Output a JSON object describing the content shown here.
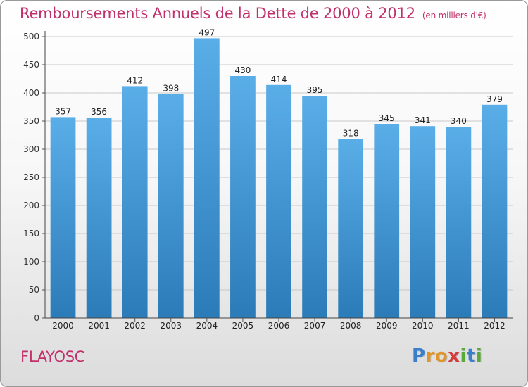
{
  "header": {
    "title": "Remboursements Annuels de la Dette de 2000 à 2012",
    "unit": "(en milliers d'€)"
  },
  "commune": "FLAYOSC",
  "brand": {
    "letters": [
      {
        "char": "P",
        "color": "#3a7fc9"
      },
      {
        "char": "r",
        "color": "#e0962a"
      },
      {
        "char": "o",
        "color": "#e0962a"
      },
      {
        "char": "x",
        "color": "#d63a3a"
      },
      {
        "char": "i",
        "color": "#5aa83a"
      },
      {
        "char": "t",
        "color": "#3a7fc9"
      },
      {
        "char": "i",
        "color": "#5aa83a"
      }
    ]
  },
  "chart_data": {
    "type": "bar",
    "title": "Remboursements Annuels de la Dette de 2000 à 2012",
    "subtitle": "(en milliers d'€)",
    "categories": [
      "2000",
      "2001",
      "2002",
      "2003",
      "2004",
      "2005",
      "2006",
      "2007",
      "2008",
      "2009",
      "2010",
      "2011",
      "2012"
    ],
    "values": [
      357,
      356,
      412,
      398,
      497,
      430,
      414,
      395,
      318,
      345,
      341,
      340,
      379
    ],
    "ylim": [
      0,
      500
    ],
    "yticks": [
      0,
      50,
      100,
      150,
      200,
      250,
      300,
      350,
      400,
      450,
      500
    ],
    "grid": true,
    "bar_color_top": "#5aaee8",
    "bar_color_bottom": "#2b7bb8"
  }
}
